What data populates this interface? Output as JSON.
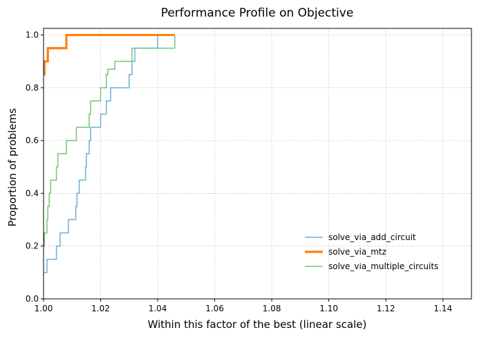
{
  "chart_data": {
    "type": "line",
    "title": "Performance Profile on Objective",
    "xlabel": "Within this factor of the best (linear scale)",
    "ylabel": "Proportion of problems",
    "xlim": [
      1.0,
      1.15
    ],
    "ylim": [
      0.0,
      1.025
    ],
    "xticks": [
      1.0,
      1.02,
      1.04,
      1.06,
      1.08,
      1.1,
      1.12,
      1.14
    ],
    "xtick_labels": [
      "1.00",
      "1.02",
      "1.04",
      "1.06",
      "1.08",
      "1.10",
      "1.12",
      "1.14"
    ],
    "yticks": [
      0.0,
      0.2,
      0.4,
      0.6,
      0.8,
      1.0
    ],
    "ytick_labels": [
      "0.0",
      "0.2",
      "0.4",
      "0.6",
      "0.8",
      "1.0"
    ],
    "grid": true,
    "legend_position": "lower-right",
    "step": "post",
    "series": [
      {
        "name": "solve_via_add_circuit",
        "color": "#6baed6",
        "line_width": 1.5,
        "x": [
          1.0,
          1.0012,
          1.0045,
          1.0058,
          1.0087,
          1.0113,
          1.0117,
          1.0125,
          1.0147,
          1.015,
          1.016,
          1.0165,
          1.02,
          1.022,
          1.0235,
          1.03,
          1.031,
          1.032,
          1.04,
          1.046
        ],
        "y": [
          0.1,
          0.15,
          0.2,
          0.25,
          0.3,
          0.35,
          0.4,
          0.45,
          0.5,
          0.55,
          0.6,
          0.65,
          0.7,
          0.75,
          0.8,
          0.85,
          0.9,
          0.95,
          1.0,
          1.0
        ]
      },
      {
        "name": "solve_via_mtz",
        "color": "#ff7f0e",
        "line_width": 3.2,
        "x": [
          1.0,
          1.0003,
          1.0015,
          1.008,
          1.046
        ],
        "y": [
          0.85,
          0.9,
          0.95,
          1.0,
          1.0
        ]
      },
      {
        "name": "solve_via_multiple_circuits",
        "color": "#74c476",
        "line_width": 1.5,
        "x": [
          1.0,
          1.0003,
          1.0012,
          1.0015,
          1.002,
          1.0025,
          1.0045,
          1.005,
          1.008,
          1.0115,
          1.016,
          1.0165,
          1.02,
          1.022,
          1.0225,
          1.0235,
          1.025,
          1.031,
          1.046
        ],
        "y": [
          0.2,
          0.25,
          0.3,
          0.35,
          0.4,
          0.45,
          0.5,
          0.55,
          0.6,
          0.65,
          0.7,
          0.75,
          0.8,
          0.85,
          0.87,
          0.87,
          0.9,
          0.95,
          1.0
        ]
      }
    ]
  }
}
